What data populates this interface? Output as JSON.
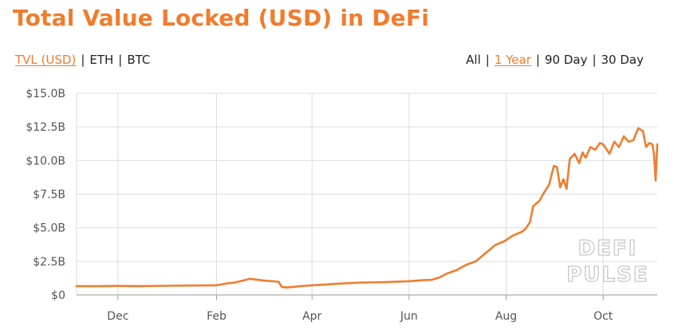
{
  "title": "Total Value Locked (USD) in DeFi",
  "metric_options": [
    {
      "label": "TVL (USD)",
      "active": true
    },
    {
      "label": "ETH",
      "active": false
    },
    {
      "label": "BTC",
      "active": false
    }
  ],
  "range_options": [
    {
      "label": "All",
      "active": false
    },
    {
      "label": "1 Year",
      "active": true
    },
    {
      "label": "90 Day",
      "active": false
    },
    {
      "label": "30 Day",
      "active": false
    }
  ],
  "separator": "|",
  "watermark": [
    "DEFI",
    "PULSE"
  ],
  "colors": {
    "line": "#f07c2e",
    "accent": "#f07c2e",
    "grid": "#dddddd"
  },
  "chart_data": {
    "type": "line",
    "title": "Total Value Locked (USD) in DeFi",
    "xlabel": "",
    "ylabel": "",
    "x_tick_labels": [
      "Dec",
      "Feb",
      "Apr",
      "Jun",
      "Aug",
      "Oct"
    ],
    "x_tick_dates": [
      "2019-12-01",
      "2020-02-01",
      "2020-04-01",
      "2020-06-01",
      "2020-08-01",
      "2020-10-01"
    ],
    "y_tick_labels": [
      "$0",
      "$2.5B",
      "$5.0B",
      "$7.5B",
      "$10.0B",
      "$12.5B",
      "$15.0B"
    ],
    "y_tick_values": [
      0,
      2.5,
      5,
      7.5,
      10,
      12.5,
      15
    ],
    "y_unit": "B USD",
    "xlim": [
      "2019-11-05",
      "2020-11-04"
    ],
    "ylim": [
      0,
      15
    ],
    "grid": true,
    "series": [
      {
        "x": [
          "2019-11-05",
          "2019-11-20",
          "2019-12-01",
          "2019-12-15",
          "2020-01-01",
          "2020-01-15",
          "2020-02-01",
          "2020-02-07",
          "2020-02-12",
          "2020-02-17",
          "2020-02-22",
          "2020-03-01",
          "2020-03-07",
          "2020-03-11",
          "2020-03-13",
          "2020-03-16",
          "2020-03-25",
          "2020-04-01",
          "2020-04-15",
          "2020-05-01",
          "2020-05-15",
          "2020-06-01",
          "2020-06-10",
          "2020-06-15",
          "2020-06-20",
          "2020-06-25",
          "2020-07-01",
          "2020-07-07",
          "2020-07-13",
          "2020-07-19",
          "2020-07-25",
          "2020-07-31",
          "2020-08-05",
          "2020-08-11",
          "2020-08-13",
          "2020-08-16",
          "2020-08-18",
          "2020-08-22",
          "2020-08-24",
          "2020-08-28",
          "2020-08-31",
          "2020-09-02",
          "2020-09-04",
          "2020-09-06",
          "2020-09-08",
          "2020-09-10",
          "2020-09-13",
          "2020-09-16",
          "2020-09-18",
          "2020-09-20",
          "2020-09-23",
          "2020-09-26",
          "2020-09-29",
          "2020-10-01",
          "2020-10-05",
          "2020-10-08",
          "2020-10-11",
          "2020-10-14",
          "2020-10-17",
          "2020-10-20",
          "2020-10-23",
          "2020-10-26",
          "2020-10-28",
          "2020-10-30",
          "2020-11-01",
          "2020-11-02",
          "2020-11-03",
          "2020-11-04"
        ],
        "values": [
          0.66,
          0.65,
          0.67,
          0.66,
          0.68,
          0.7,
          0.72,
          0.85,
          0.92,
          1.05,
          1.2,
          1.08,
          1.02,
          0.98,
          0.6,
          0.55,
          0.66,
          0.72,
          0.82,
          0.92,
          0.95,
          1.02,
          1.1,
          1.12,
          1.3,
          1.6,
          1.85,
          2.25,
          2.5,
          3.1,
          3.7,
          4.0,
          4.4,
          4.7,
          4.9,
          5.4,
          6.6,
          7.0,
          7.45,
          8.2,
          9.6,
          9.5,
          8.0,
          8.6,
          7.9,
          10.1,
          10.5,
          9.8,
          10.6,
          10.2,
          11.0,
          10.8,
          11.3,
          11.2,
          10.5,
          11.4,
          11.0,
          11.8,
          11.4,
          11.5,
          12.4,
          12.2,
          11.0,
          11.3,
          11.2,
          10.4,
          8.5,
          11.2
        ]
      }
    ]
  }
}
